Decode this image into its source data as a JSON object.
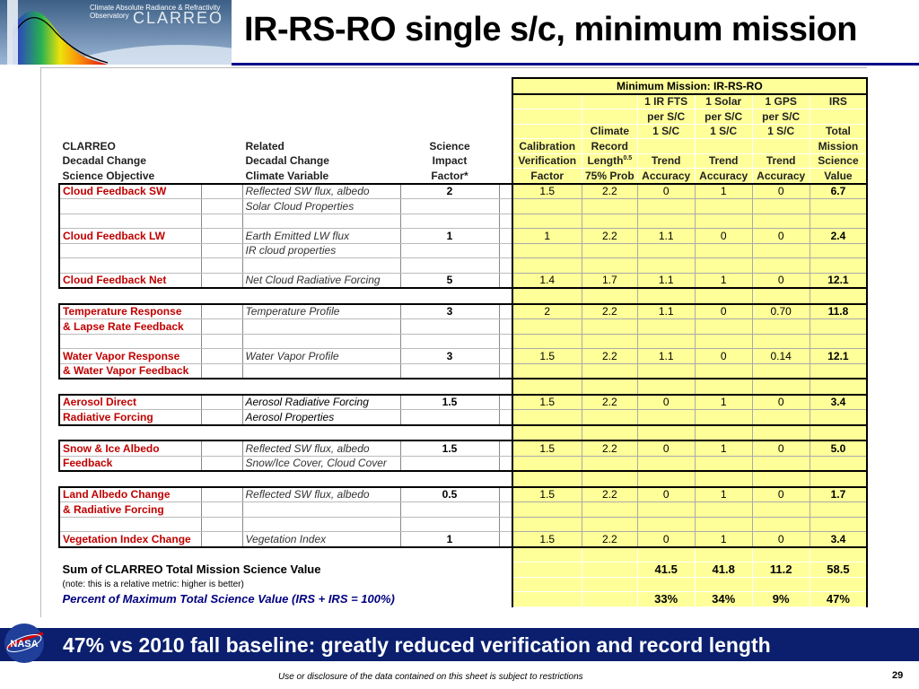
{
  "logo": {
    "subtitle": "Climate Absolute Radiance & Refractivity Observatory",
    "name": "CLARREO"
  },
  "title": "IR-RS-RO single s/c, minimum mission",
  "table": {
    "mm_header": "Minimum Mission: IR-RS-RO",
    "left_headers": {
      "col1": [
        "CLARREO",
        "Decadal Change",
        "Science Objective"
      ],
      "col2": [
        "Related",
        "Decadal Change",
        "Climate Variable"
      ],
      "col3": [
        "Science",
        "Impact",
        "Factor*"
      ]
    },
    "right_headers": {
      "cal": [
        "Calibration",
        "Verification",
        "Factor"
      ],
      "clim": [
        "Climate",
        "Record",
        "Length",
        "75% Prob"
      ],
      "clim_sup": "0.5",
      "ir": [
        "1 IR FTS",
        "per S/C",
        "1 S/C",
        "Trend",
        "Accuracy"
      ],
      "solar": [
        "1 Solar",
        "per S/C",
        "1 S/C",
        "Trend",
        "Accuracy"
      ],
      "gps": [
        "1 GPS",
        "per S/C",
        "1 S/C",
        "Trend",
        "Accuracy"
      ],
      "irs": [
        "IRS",
        "Total",
        "Mission",
        "Science",
        "Value"
      ]
    },
    "rows": [
      {
        "obj": "Cloud Feedback SW",
        "var": "Reflected SW flux, albedo",
        "var_italic": true,
        "imp": "2",
        "cal": "1.5",
        "clim": "2.2",
        "ir": "0",
        "solar": "1",
        "gps": "0",
        "irs": "6.7",
        "top": true
      },
      {
        "obj": "",
        "var": "Solar Cloud Properties",
        "var_italic": true
      },
      {
        "obj": "",
        "var": ""
      },
      {
        "obj": "Cloud Feedback LW",
        "var": "Earth Emitted LW flux",
        "var_italic": true,
        "imp": "1",
        "cal": "1",
        "clim": "2.2",
        "ir": "1.1",
        "solar": "0",
        "gps": "0",
        "irs": "2.4"
      },
      {
        "obj": "",
        "var": "IR cloud properties",
        "var_italic": true
      },
      {
        "obj": "",
        "var": ""
      },
      {
        "obj": "Cloud Feedback Net",
        "var": "Net Cloud Radiative Forcing",
        "var_italic": true,
        "imp": "5",
        "cal": "1.4",
        "clim": "1.7",
        "ir": "1.1",
        "solar": "1",
        "gps": "0",
        "irs": "12.1",
        "bottom": true
      },
      {
        "obj": "",
        "var": "",
        "gap": true
      },
      {
        "obj": "Temperature Response",
        "var": "Temperature Profile",
        "var_italic": true,
        "imp": "3",
        "cal": "2",
        "clim": "2.2",
        "ir": "1.1",
        "solar": "0",
        "gps": "0.70",
        "irs": "11.8",
        "top": true
      },
      {
        "obj": "& Lapse Rate Feedback",
        "var": ""
      },
      {
        "obj": "",
        "var": ""
      },
      {
        "obj": "Water Vapor Response",
        "var": "Water Vapor Profile",
        "var_italic": true,
        "imp": "3",
        "cal": "1.5",
        "clim": "2.2",
        "ir": "1.1",
        "solar": "0",
        "gps": "0.14",
        "irs": "12.1"
      },
      {
        "obj": "& Water Vapor Feedback",
        "var": "",
        "bottom": true
      },
      {
        "obj": "",
        "var": "",
        "gap": true
      },
      {
        "obj": "Aerosol Direct",
        "var": "Aerosol Radiative Forcing",
        "var_italic": false,
        "imp": "1.5",
        "cal": "1.5",
        "clim": "2.2",
        "ir": "0",
        "solar": "1",
        "gps": "0",
        "irs": "3.4",
        "top": true
      },
      {
        "obj": "Radiative Forcing",
        "var": "Aerosol Properties",
        "var_italic": false,
        "bottom": true
      },
      {
        "obj": "",
        "var": "",
        "gap": true
      },
      {
        "obj": "Snow & Ice Albedo",
        "var": "Reflected SW flux, albedo",
        "var_italic": true,
        "imp": "1.5",
        "cal": "1.5",
        "clim": "2.2",
        "ir": "0",
        "solar": "1",
        "gps": "0",
        "irs": "5.0",
        "top": true
      },
      {
        "obj": "Feedback",
        "var": "Snow/Ice Cover, Cloud Cover",
        "var_italic": true,
        "bottom": true
      },
      {
        "obj": "",
        "var": "",
        "gap": true
      },
      {
        "obj": "Land Albedo Change",
        "var": "Reflected SW flux, albedo",
        "var_italic": true,
        "imp": "0.5",
        "cal": "1.5",
        "clim": "2.2",
        "ir": "0",
        "solar": "1",
        "gps": "0",
        "irs": "1.7",
        "top": true
      },
      {
        "obj": "& Radiative Forcing",
        "var": ""
      },
      {
        "obj": "",
        "var": ""
      },
      {
        "obj": "Vegetation Index Change",
        "var": "Vegetation Index",
        "var_italic": true,
        "imp": "1",
        "cal": "1.5",
        "clim": "2.2",
        "ir": "0",
        "solar": "1",
        "gps": "0",
        "irs": "3.4",
        "bottom": true
      }
    ],
    "sum_label": "Sum of CLARREO Total Mission Science Value",
    "sum_values": {
      "ir": "41.5",
      "solar": "41.8",
      "gps": "11.2",
      "irs": "58.5"
    },
    "note": "(note: this is a relative metric: higher is better)",
    "pct_label": "Percent of Maximum Total Science Value (IRS + IRS = 100%)",
    "pct_values": {
      "ir": "33%",
      "solar": "34%",
      "gps": "9%",
      "irs": "47%"
    }
  },
  "footer": {
    "headline": "47% vs 2010 fall baseline: greatly reduced verification and record length",
    "disclosure": "Use or disclosure of the data contained on this sheet is subject to restrictions",
    "page_number": "29"
  },
  "colors": {
    "accent_navy": "#00008b",
    "footer_bar": "#0b1f6e",
    "objective_red": "#c00000",
    "cell_yellow": "#ffff99"
  }
}
